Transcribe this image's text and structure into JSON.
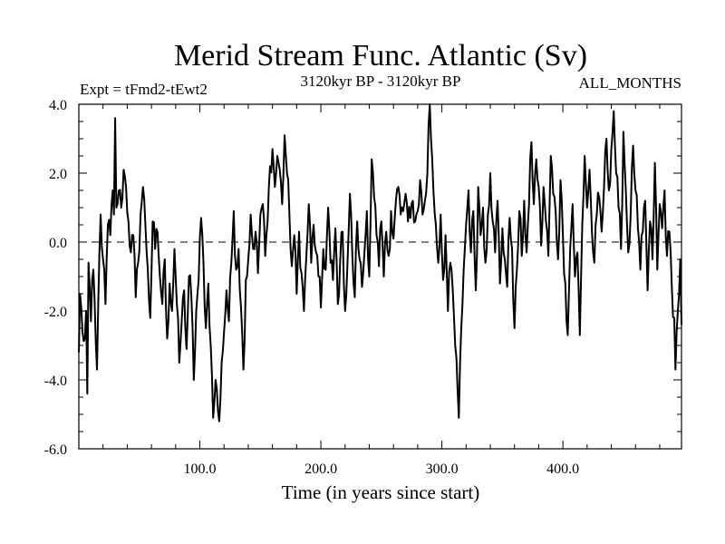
{
  "chart_data": {
    "type": "line",
    "title": "Merid Stream Func. Atlantic (Sv)",
    "subtitle_left": "Expt = tFmd2-tEwt2",
    "subtitle_center": "3120kyr BP - 3120kyr BP",
    "subtitle_right": "ALL_MONTHS",
    "xlabel": "Time (in years since start)",
    "ylabel": "",
    "xlim": [
      0,
      498
    ],
    "ylim": [
      -6,
      4
    ],
    "x_ticks": [
      100,
      200,
      300,
      400
    ],
    "x_tick_labels": [
      "100.0",
      "200.0",
      "300.0",
      "400.0"
    ],
    "y_ticks": [
      -6,
      -4,
      -2,
      0,
      2,
      4
    ],
    "y_tick_labels": [
      "-6.0",
      "-4.0",
      "-2.0",
      "0.0",
      "2.0",
      "4.0"
    ],
    "reference_line": {
      "y": 0,
      "style": "dashed"
    },
    "series": [
      {
        "name": "Merid Stream Func. Atlantic",
        "x_start": 0,
        "x_step": 1,
        "key_points": [
          [
            0,
            -3.2
          ],
          [
            1,
            -1.5
          ],
          [
            3,
            -2.6
          ],
          [
            5,
            -2.8
          ],
          [
            6,
            -2.0
          ],
          [
            7,
            -4.4
          ],
          [
            8,
            -0.6
          ],
          [
            10,
            -2.3
          ],
          [
            12,
            -0.8
          ],
          [
            14,
            -2.9
          ],
          [
            15,
            -3.7
          ],
          [
            17,
            -0.3
          ],
          [
            18,
            0.8
          ],
          [
            20,
            -0.5
          ],
          [
            22,
            -1.8
          ],
          [
            24,
            0.5
          ],
          [
            26,
            0.2
          ],
          [
            28,
            1.5
          ],
          [
            29,
            0.8
          ],
          [
            30,
            3.6
          ],
          [
            31,
            1.0
          ],
          [
            33,
            1.5
          ],
          [
            35,
            1.0
          ],
          [
            37,
            2.1
          ],
          [
            39,
            1.6
          ],
          [
            41,
            0.6
          ],
          [
            43,
            -0.3
          ],
          [
            45,
            0.2
          ],
          [
            47,
            -1.6
          ],
          [
            49,
            -0.6
          ],
          [
            51,
            0.8
          ],
          [
            53,
            1.6
          ],
          [
            55,
            0.5
          ],
          [
            57,
            -0.8
          ],
          [
            59,
            -2.2
          ],
          [
            61,
            0.6
          ],
          [
            63,
            -0.2
          ],
          [
            65,
            0.3
          ],
          [
            67,
            -1.0
          ],
          [
            69,
            -1.8
          ],
          [
            71,
            -0.5
          ],
          [
            73,
            -2.8
          ],
          [
            75,
            -1.2
          ],
          [
            77,
            -2.0
          ],
          [
            79,
            -0.2
          ],
          [
            81,
            -1.8
          ],
          [
            83,
            -3.5
          ],
          [
            85,
            -2.3
          ],
          [
            87,
            -1.4
          ],
          [
            89,
            -3.1
          ],
          [
            91,
            -1.0
          ],
          [
            93,
            -1.6
          ],
          [
            95,
            -4.0
          ],
          [
            97,
            -2.0
          ],
          [
            99,
            -1.1
          ],
          [
            101,
            0.7
          ],
          [
            103,
            -0.6
          ],
          [
            105,
            -2.5
          ],
          [
            107,
            -1.2
          ],
          [
            109,
            -3.0
          ],
          [
            111,
            -5.1
          ],
          [
            113,
            -4.0
          ],
          [
            115,
            -4.9
          ],
          [
            116,
            -5.2
          ],
          [
            118,
            -3.5
          ],
          [
            120,
            -2.6
          ],
          [
            122,
            -1.4
          ],
          [
            124,
            -2.3
          ],
          [
            126,
            -0.6
          ],
          [
            128,
            0.9
          ],
          [
            130,
            -0.8
          ],
          [
            132,
            -0.2
          ],
          [
            134,
            -1.9
          ],
          [
            136,
            -3.7
          ],
          [
            138,
            -1.1
          ],
          [
            140,
            -0.5
          ],
          [
            142,
            0.8
          ],
          [
            144,
            -0.2
          ],
          [
            146,
            0.3
          ],
          [
            148,
            -0.9
          ],
          [
            150,
            0.8
          ],
          [
            152,
            1.1
          ],
          [
            154,
            -0.4
          ],
          [
            156,
            0.6
          ],
          [
            158,
            2.2
          ],
          [
            160,
            2.7
          ],
          [
            162,
            1.6
          ],
          [
            164,
            2.5
          ],
          [
            166,
            2.1
          ],
          [
            168,
            1.1
          ],
          [
            170,
            3.1
          ],
          [
            172,
            2.0
          ],
          [
            174,
            0.8
          ],
          [
            176,
            -0.7
          ],
          [
            178,
            0.2
          ],
          [
            180,
            -1.5
          ],
          [
            182,
            0.3
          ],
          [
            184,
            -0.9
          ],
          [
            186,
            -2.0
          ],
          [
            188,
            -0.4
          ],
          [
            190,
            1.1
          ],
          [
            192,
            -0.6
          ],
          [
            194,
            0.5
          ],
          [
            196,
            -0.3
          ],
          [
            198,
            -1.0
          ],
          [
            200,
            -1.9
          ],
          [
            202,
            -0.2
          ],
          [
            204,
            -0.8
          ],
          [
            206,
            1.0
          ],
          [
            208,
            -0.6
          ],
          [
            210,
            -1.1
          ],
          [
            212,
            0.4
          ],
          [
            214,
            -1.8
          ],
          [
            216,
            -0.5
          ],
          [
            218,
            0.3
          ],
          [
            220,
            -2.0
          ],
          [
            222,
            -0.6
          ],
          [
            224,
            1.4
          ],
          [
            226,
            -0.4
          ],
          [
            228,
            -1.6
          ],
          [
            230,
            0.6
          ],
          [
            232,
            -0.5
          ],
          [
            234,
            -1.3
          ],
          [
            236,
            -0.3
          ],
          [
            238,
            0.9
          ],
          [
            240,
            -1.0
          ],
          [
            242,
            2.4
          ],
          [
            244,
            1.3
          ],
          [
            246,
            0.2
          ],
          [
            248,
            -0.7
          ],
          [
            250,
            0.6
          ],
          [
            252,
            -1.0
          ],
          [
            254,
            0.3
          ],
          [
            256,
            -0.4
          ],
          [
            258,
            0.9
          ],
          [
            260,
            0.1
          ],
          [
            262,
            1.2
          ],
          [
            264,
            1.6
          ],
          [
            266,
            0.8
          ],
          [
            268,
            0.9
          ],
          [
            270,
            1.4
          ],
          [
            272,
            0.6
          ],
          [
            274,
            0.7
          ],
          [
            276,
            1.2
          ],
          [
            278,
            0.6
          ],
          [
            280,
            0.9
          ],
          [
            282,
            1.8
          ],
          [
            284,
            0.8
          ],
          [
            286,
            1.2
          ],
          [
            288,
            2.0
          ],
          [
            289,
            3.4
          ],
          [
            290,
            4.0
          ],
          [
            291,
            3.0
          ],
          [
            293,
            1.5
          ],
          [
            295,
            0.5
          ],
          [
            297,
            -0.6
          ],
          [
            299,
            0.8
          ],
          [
            301,
            -1.1
          ],
          [
            303,
            0.2
          ],
          [
            305,
            -2.0
          ],
          [
            307,
            -0.6
          ],
          [
            309,
            -1.4
          ],
          [
            311,
            -3.0
          ],
          [
            313,
            -4.3
          ],
          [
            314,
            -5.1
          ],
          [
            316,
            -2.5
          ],
          [
            318,
            -0.8
          ],
          [
            320,
            0.5
          ],
          [
            322,
            1.5
          ],
          [
            324,
            -0.3
          ],
          [
            326,
            0.9
          ],
          [
            328,
            -1.4
          ],
          [
            330,
            1.6
          ],
          [
            332,
            0.2
          ],
          [
            334,
            1.0
          ],
          [
            336,
            -0.6
          ],
          [
            338,
            0.8
          ],
          [
            340,
            2.0
          ],
          [
            342,
            0.6
          ],
          [
            344,
            -0.3
          ],
          [
            346,
            1.2
          ],
          [
            348,
            -1.2
          ],
          [
            350,
            0.4
          ],
          [
            352,
            -0.5
          ],
          [
            354,
            -1.3
          ],
          [
            356,
            0.7
          ],
          [
            358,
            -0.2
          ],
          [
            360,
            -2.5
          ],
          [
            362,
            -0.8
          ],
          [
            364,
            0.9
          ],
          [
            366,
            -0.4
          ],
          [
            368,
            1.2
          ],
          [
            370,
            -0.3
          ],
          [
            372,
            1.1
          ],
          [
            374,
            2.9
          ],
          [
            376,
            1.1
          ],
          [
            378,
            2.4
          ],
          [
            380,
            1.6
          ],
          [
            382,
            -0.1
          ],
          [
            384,
            1.6
          ],
          [
            386,
            0.6
          ],
          [
            388,
            -0.4
          ],
          [
            390,
            2.5
          ],
          [
            392,
            1.4
          ],
          [
            394,
            0.9
          ],
          [
            396,
            -0.5
          ],
          [
            398,
            1.8
          ],
          [
            400,
            0.2
          ],
          [
            402,
            -1.2
          ],
          [
            404,
            -2.7
          ],
          [
            406,
            -0.2
          ],
          [
            408,
            1.1
          ],
          [
            410,
            -1.0
          ],
          [
            412,
            -0.3
          ],
          [
            414,
            -2.7
          ],
          [
            416,
            0.5
          ],
          [
            418,
            2.5
          ],
          [
            420,
            1.0
          ],
          [
            422,
            2.1
          ],
          [
            424,
            0.3
          ],
          [
            426,
            -0.6
          ],
          [
            428,
            0.8
          ],
          [
            430,
            1.3
          ],
          [
            432,
            0.3
          ],
          [
            434,
            1.6
          ],
          [
            436,
            3.0
          ],
          [
            438,
            1.5
          ],
          [
            440,
            2.7
          ],
          [
            442,
            3.8
          ],
          [
            444,
            2.0
          ],
          [
            446,
            1.0
          ],
          [
            448,
            -0.2
          ],
          [
            450,
            3.2
          ],
          [
            452,
            1.5
          ],
          [
            454,
            -0.3
          ],
          [
            456,
            0.8
          ],
          [
            458,
            2.8
          ],
          [
            460,
            1.5
          ],
          [
            462,
            0.4
          ],
          [
            464,
            -0.8
          ],
          [
            466,
            0.3
          ],
          [
            468,
            1.2
          ],
          [
            470,
            -1.4
          ],
          [
            472,
            0.6
          ],
          [
            474,
            -0.5
          ],
          [
            476,
            2.3
          ],
          [
            478,
            -0.8
          ],
          [
            480,
            1.1
          ],
          [
            482,
            0.4
          ],
          [
            484,
            1.5
          ],
          [
            486,
            -0.4
          ],
          [
            488,
            0.3
          ],
          [
            490,
            -1.3
          ],
          [
            492,
            -2.2
          ],
          [
            493,
            -3.7
          ],
          [
            494,
            -2.6
          ],
          [
            495,
            -2.0
          ],
          [
            496,
            -1.5
          ],
          [
            497,
            -0.5
          ],
          [
            498,
            -2.4
          ]
        ]
      }
    ]
  }
}
